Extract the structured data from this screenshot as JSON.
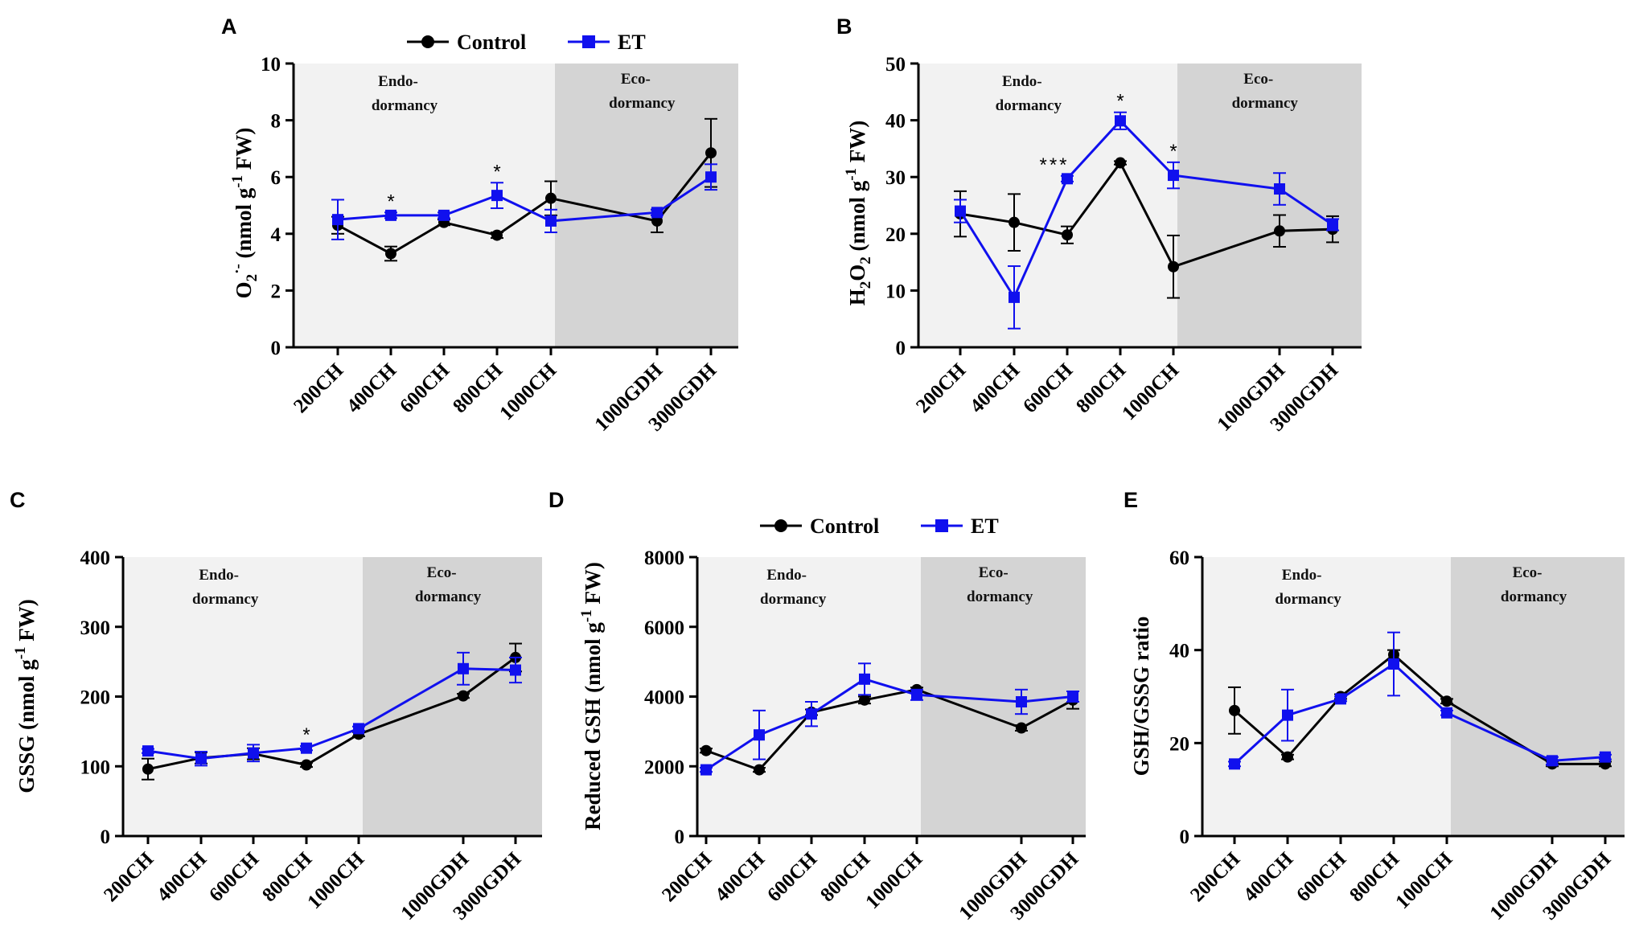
{
  "legend": {
    "control_label": "Control",
    "et_label": "ET",
    "control_color": "#000000",
    "et_color": "#1010ee"
  },
  "colors": {
    "endo_bg": "#f2f2f2",
    "eco_bg": "#d4d4d4"
  },
  "phases": {
    "endo": [
      "Endo-",
      "dormancy"
    ],
    "eco": [
      "Eco-",
      "dormancy"
    ]
  },
  "chart_data": [
    {
      "panel": "A",
      "type": "line",
      "categories": [
        "200CH",
        "400CH",
        "600CH",
        "800CH",
        "1000CH",
        "1000GDH",
        "3000GDH"
      ],
      "ylabel": "O2·- (nmol g-1 FW)",
      "ylabel_parts": {
        "main": "O",
        "sub": "2",
        "sup": "·-",
        "rest": " (nmol g",
        "sup2": "-1",
        "end": " FW)"
      },
      "ylim": [
        0,
        10
      ],
      "yticks": [
        0,
        2,
        4,
        6,
        8,
        10
      ],
      "y_tick_labels": [
        "0",
        "2",
        "4",
        "6",
        "8",
        "10"
      ],
      "phase_boundary_after_index": 4,
      "series": [
        {
          "name": "Control",
          "values": [
            4.3,
            3.3,
            4.4,
            3.95,
            5.25,
            4.45,
            6.85
          ],
          "errors": [
            0.3,
            0.25,
            0.1,
            0.1,
            0.6,
            0.4,
            1.2
          ]
        },
        {
          "name": "ET",
          "values": [
            4.5,
            4.65,
            4.65,
            5.35,
            4.45,
            4.75,
            6.0
          ],
          "errors": [
            0.7,
            0.1,
            0.1,
            0.45,
            0.4,
            0.1,
            0.45
          ]
        }
      ],
      "significance": [
        {
          "index": 1,
          "label": "*"
        },
        {
          "index": 3,
          "label": "*"
        }
      ]
    },
    {
      "panel": "B",
      "type": "line",
      "categories": [
        "200CH",
        "400CH",
        "600CH",
        "800CH",
        "1000CH",
        "1000GDH",
        "3000GDH"
      ],
      "ylabel": "H2O2 (nmol g-1 FW)",
      "ylabel_parts": {
        "main": "H",
        "sub": "2",
        "mid": "O",
        "sub2": "2",
        "rest": " (nmol g",
        "sup2": "-1",
        "end": " FW)"
      },
      "ylim": [
        0,
        50
      ],
      "yticks": [
        0,
        10,
        20,
        30,
        40,
        50
      ],
      "y_tick_labels": [
        "0",
        "10",
        "20",
        "30",
        "40",
        "50"
      ],
      "phase_boundary_after_index": 4,
      "series": [
        {
          "name": "Control",
          "values": [
            23.5,
            22.0,
            19.8,
            32.5,
            14.2,
            20.5,
            20.8
          ],
          "errors": [
            4.0,
            5.0,
            1.5,
            0.3,
            5.5,
            2.8,
            2.3
          ]
        },
        {
          "name": "ET",
          "values": [
            24.0,
            8.8,
            29.7,
            39.9,
            30.3,
            27.9,
            21.6
          ],
          "errors": [
            2.0,
            5.5,
            0.5,
            1.5,
            2.3,
            2.8,
            1.0
          ]
        }
      ],
      "significance": [
        {
          "index": 2,
          "label": "***"
        },
        {
          "index": 3,
          "label": "*"
        },
        {
          "index": 4,
          "label": "*"
        }
      ]
    },
    {
      "panel": "C",
      "type": "line",
      "categories": [
        "200CH",
        "400CH",
        "600CH",
        "800CH",
        "1000CH",
        "1000GDH",
        "3000GDH"
      ],
      "ylabel": "GSSG (nmol g-1 FW)",
      "ylabel_parts": {
        "main": "GSSG (nmol g",
        "sup2": "-1",
        "end": " FW)"
      },
      "ylim": [
        0,
        400
      ],
      "yticks": [
        0,
        100,
        200,
        300,
        400
      ],
      "y_tick_labels": [
        "0",
        "100",
        "200",
        "300",
        "400"
      ],
      "phase_boundary_after_index": 4,
      "series": [
        {
          "name": "Control",
          "values": [
            96,
            112,
            118,
            102,
            146,
            201,
            256
          ],
          "errors": [
            15,
            8,
            8,
            3,
            3,
            3,
            20
          ]
        },
        {
          "name": "ET",
          "values": [
            122,
            111,
            119,
            126,
            154,
            240,
            238
          ],
          "errors": [
            3,
            10,
            12,
            3,
            3,
            23,
            18
          ]
        }
      ],
      "significance": [
        {
          "index": 3,
          "label": "*"
        }
      ]
    },
    {
      "panel": "D",
      "type": "line",
      "categories": [
        "200CH",
        "400CH",
        "600CH",
        "800CH",
        "1000CH",
        "1000GDH",
        "3000GDH"
      ],
      "ylabel": "Reduced GSH (nmol g-1 FW)",
      "ylabel_parts": {
        "main": "Reduced GSH (nmol g",
        "sup2": "-1",
        "end": " FW)"
      },
      "ylim": [
        0,
        8000
      ],
      "yticks": [
        0,
        2000,
        4000,
        6000,
        8000
      ],
      "y_tick_labels": [
        "0",
        "2000",
        "4000",
        "6000",
        "8000"
      ],
      "phase_boundary_after_index": 4,
      "series": [
        {
          "name": "Control",
          "values": [
            2450,
            1900,
            3550,
            3900,
            4200,
            3100,
            3900
          ],
          "errors": [
            60,
            60,
            80,
            100,
            60,
            80,
            250
          ]
        },
        {
          "name": "ET",
          "values": [
            1900,
            2900,
            3500,
            4500,
            4050,
            3850,
            4000
          ],
          "errors": [
            60,
            700,
            350,
            450,
            150,
            350,
            150
          ]
        }
      ],
      "significance": []
    },
    {
      "panel": "E",
      "type": "line",
      "categories": [
        "200CH",
        "400CH",
        "600CH",
        "800CH",
        "1000CH",
        "1000GDH",
        "3000GDH"
      ],
      "ylabel": "GSH/GSSG ratio",
      "ylabel_parts": {
        "main": "GSH/GSSG ratio"
      },
      "ylim": [
        0,
        60
      ],
      "yticks": [
        0,
        20,
        40,
        60
      ],
      "y_tick_labels": [
        "0",
        "20",
        "40",
        "60"
      ],
      "phase_boundary_after_index": 4,
      "series": [
        {
          "name": "Control",
          "values": [
            27.0,
            17.0,
            30.0,
            39.0,
            29.0,
            15.5,
            15.5
          ],
          "errors": [
            5.0,
            0.5,
            0.5,
            1.0,
            0.5,
            0.5,
            0.5
          ]
        },
        {
          "name": "ET",
          "values": [
            15.5,
            26.0,
            29.5,
            37.0,
            26.5,
            16.2,
            17.0
          ],
          "errors": [
            0.5,
            5.5,
            0.5,
            6.8,
            0.5,
            0.8,
            0.5
          ]
        }
      ],
      "significance": []
    }
  ]
}
